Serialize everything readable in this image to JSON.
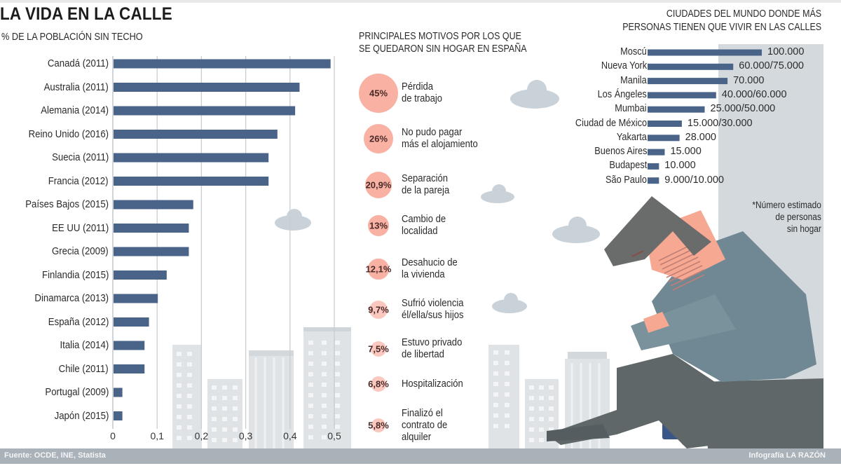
{
  "header": {
    "title": "LA VIDA EN LA CALLE",
    "subtitle": "% DE LA POBLACIÓN SIN TECHO"
  },
  "colors": {
    "bar": "#4a6388",
    "reason_circle": "#f8b1a3",
    "building": "#dfe3e6",
    "cloud": "#c9d2d8",
    "panel_gray": "#d4d9dd",
    "footer": "#a9b2b9",
    "jacket": "#6f8893",
    "pants": "#5f6769",
    "hair": "#6a6b6b",
    "skin": "#f6a893",
    "bus": "#3a5689"
  },
  "chart_data": [
    {
      "type": "bar",
      "orientation": "horizontal",
      "title": "% DE LA POBLACIÓN SIN TECHO",
      "categories": [
        "Canadá (2011)",
        "Australia (2011)",
        "Alemania (2014)",
        "Reino Unido (2016)",
        "Suecia (2011)",
        "Francia (2012)",
        "Países Bajos (2015)",
        "EE UU (2011)",
        "Grecia (2009)",
        "Finlandia (2015)",
        "Dinamarca (2013)",
        "España (2012)",
        "Italia (2014)",
        "Chile (2011)",
        "Portugal (2009)",
        "Japón (2015)"
      ],
      "values": [
        0.49,
        0.42,
        0.41,
        0.37,
        0.35,
        0.35,
        0.18,
        0.17,
        0.17,
        0.12,
        0.1,
        0.08,
        0.07,
        0.07,
        0.02,
        0.02
      ],
      "xticks": [
        "0",
        "0,1",
        "0,2",
        "0,3",
        "0,4",
        "0,5"
      ],
      "xtick_values": [
        0,
        0.1,
        0.2,
        0.3,
        0.4,
        0.5
      ],
      "xlim": [
        0,
        0.5
      ],
      "grid": true,
      "xlabel": "",
      "ylabel": ""
    },
    {
      "type": "bar",
      "orientation": "horizontal",
      "title": "CIUDADES DEL MUNDO DONDE MÁS PERSONAS TIENEN QUE VIVIR EN LAS CALLES",
      "categories": [
        "Moscú",
        "Nueva York",
        "Manila",
        "Los Ángeles",
        "Mumbai",
        "Ciudad de México",
        "Yakarta",
        "Buenos Aires",
        "Budapest",
        "São Paulo"
      ],
      "values": [
        100000,
        75000,
        70000,
        60000,
        50000,
        30000,
        28000,
        15000,
        10000,
        10000
      ],
      "labels": [
        "100.000",
        "60.000/75.000",
        "70.000",
        "40.000/60.000",
        "25.000/50.000",
        "15.000/30.000",
        "28.000",
        "15.000",
        "10.000",
        "9.000/10.000"
      ],
      "xlim": [
        0,
        100000
      ],
      "note": [
        "*Número estimado",
        "de personas",
        "sin hogar"
      ]
    }
  ],
  "reasons": {
    "title": [
      "PRINCIPALES MOTIVOS POR LOS QUE",
      "SE QUEDARON SIN HOGAR EN ESPAÑA"
    ],
    "items": [
      {
        "pct": "45%",
        "value": 45,
        "lines": [
          "Pérdida",
          "de trabajo"
        ]
      },
      {
        "pct": "26%",
        "value": 26,
        "lines": [
          "No pudo pagar",
          "más el alojamiento"
        ]
      },
      {
        "pct": "20,9%",
        "value": 20.9,
        "lines": [
          "Separación",
          "de la pareja"
        ]
      },
      {
        "pct": "13%",
        "value": 13,
        "lines": [
          "Cambio de",
          "localidad"
        ]
      },
      {
        "pct": "12,1%",
        "value": 12.1,
        "lines": [
          "Desahucio de",
          "la vivienda"
        ]
      },
      {
        "pct": "9,7%",
        "value": 9.7,
        "lines": [
          "Sufrió violencia",
          "él/ella/sus hijos"
        ]
      },
      {
        "pct": "7,5%",
        "value": 7.5,
        "lines": [
          "Estuvo privado",
          "de libertad"
        ]
      },
      {
        "pct": "6,8%",
        "value": 6.8,
        "lines": [
          "Hospitalización"
        ]
      },
      {
        "pct": "5,8%",
        "value": 5.8,
        "lines": [
          "Finalizó el",
          "contrato de",
          "alquiler"
        ]
      }
    ]
  },
  "footer": {
    "source": "Fuente: OCDE, INE, Statista",
    "credit": "Infografía LA RAZÓN"
  }
}
